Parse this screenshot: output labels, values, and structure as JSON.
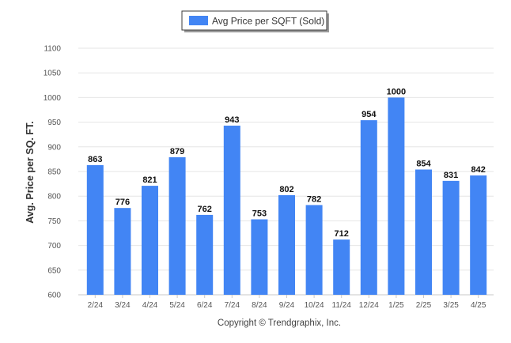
{
  "chart_data": {
    "type": "bar",
    "legend": {
      "label": "Avg Price per SQFT (Sold)",
      "placement": "top-center",
      "color": "#4285f4"
    },
    "ylabel": "Avg. Price per SQ. FT.",
    "xlabel": "",
    "ylim": [
      600,
      1100
    ],
    "ytick_step": 50,
    "grid": true,
    "bar_color": "#4285f4",
    "categories": [
      "2/24",
      "3/24",
      "4/24",
      "5/24",
      "6/24",
      "7/24",
      "8/24",
      "9/24",
      "10/24",
      "11/24",
      "12/24",
      "1/25",
      "2/25",
      "3/25",
      "4/25"
    ],
    "values": [
      863,
      776,
      821,
      879,
      762,
      943,
      753,
      802,
      782,
      712,
      954,
      1000,
      854,
      831,
      842
    ]
  },
  "footer": {
    "copyright": "Copyright © Trendgraphix, Inc."
  }
}
